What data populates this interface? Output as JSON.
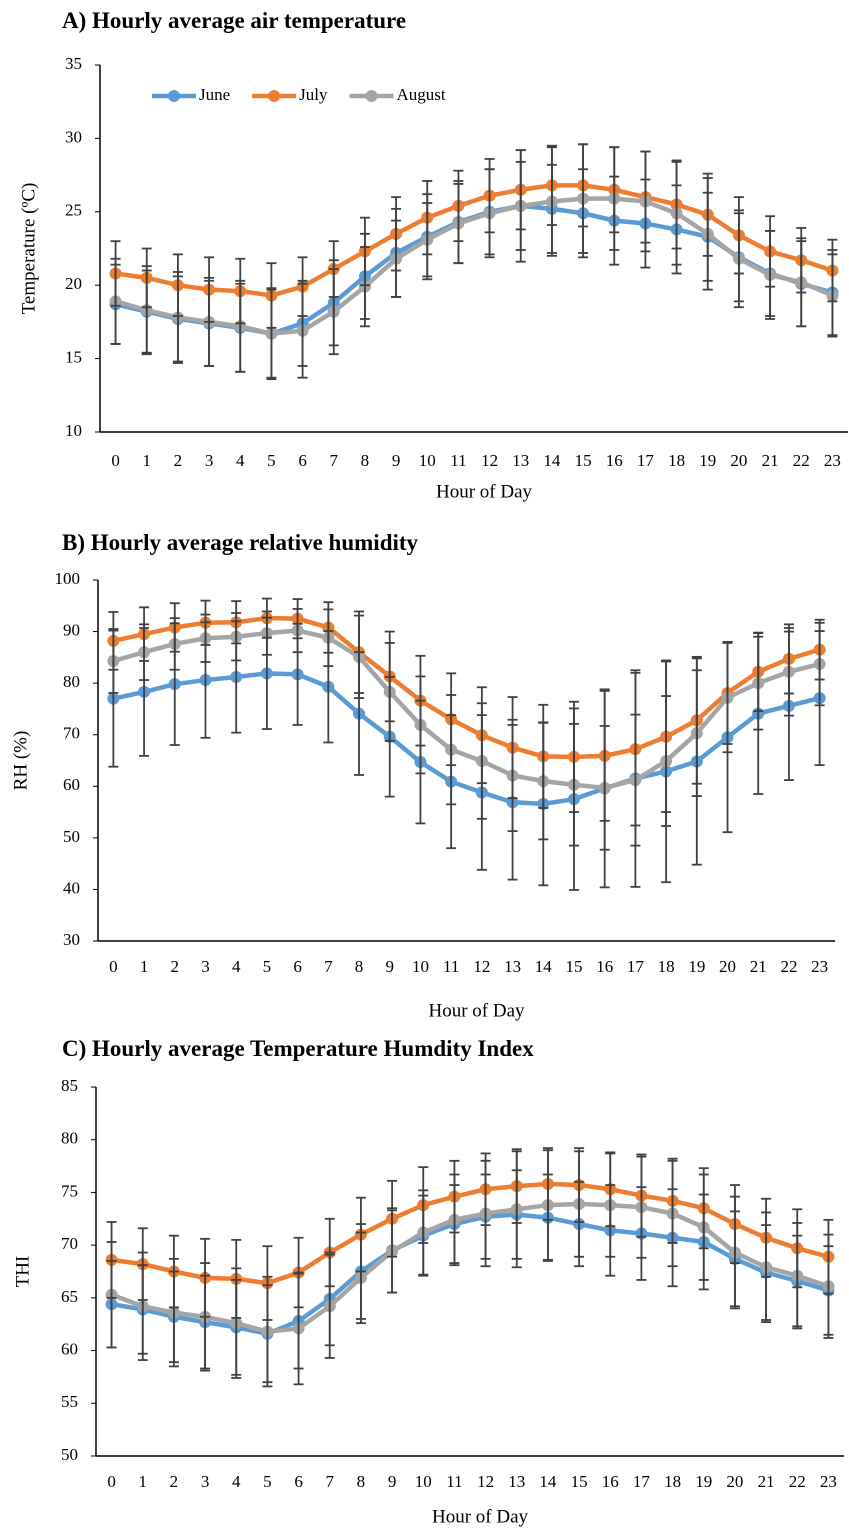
{
  "chart_data": [
    {
      "type": "line",
      "title": "A) Hourly average air temperature",
      "x_label": "Hour of Day",
      "y_label": "Temperature (ºC)",
      "categories": [
        "0",
        "1",
        "2",
        "3",
        "4",
        "5",
        "6",
        "7",
        "8",
        "9",
        "10",
        "11",
        "12",
        "13",
        "14",
        "15",
        "16",
        "17",
        "18",
        "19",
        "20",
        "21",
        "22",
        "23"
      ],
      "ylim": [
        10,
        35
      ],
      "yticks": [
        10,
        15,
        20,
        25,
        30,
        35
      ],
      "legend": "upper left",
      "series": [
        {
          "name": "June",
          "color": "#5b9bd5",
          "values": [
            18.7,
            18.2,
            17.7,
            17.4,
            17.1,
            16.7,
            17.4,
            18.8,
            20.6,
            22.2,
            23.3,
            24.3,
            25.0,
            25.4,
            25.2,
            24.9,
            24.4,
            24.2,
            23.8,
            23.3,
            21.9,
            20.8,
            20.1,
            19.5
          ],
          "errors": [
            2.7,
            2.8,
            2.9,
            2.9,
            3.0,
            3.0,
            2.9,
            2.9,
            2.9,
            3.0,
            2.9,
            2.8,
            2.9,
            3.0,
            3.0,
            3.0,
            3.0,
            3.0,
            3.0,
            3.0,
            3.0,
            2.9,
            2.9,
            2.9
          ]
        },
        {
          "name": "July",
          "color": "#ed7d31",
          "values": [
            20.8,
            20.5,
            20.0,
            19.7,
            19.6,
            19.3,
            19.9,
            21.1,
            22.3,
            23.5,
            24.6,
            25.4,
            26.1,
            26.5,
            26.8,
            26.8,
            26.5,
            26.0,
            25.5,
            24.8,
            23.4,
            22.3,
            21.7,
            21.0
          ],
          "errors": [
            2.2,
            2.0,
            2.1,
            2.2,
            2.2,
            2.2,
            2.0,
            1.9,
            2.3,
            2.5,
            2.5,
            2.4,
            2.5,
            2.7,
            2.7,
            2.8,
            2.9,
            3.1,
            3.0,
            2.8,
            2.6,
            2.4,
            2.2,
            2.1
          ]
        },
        {
          "name": "August",
          "color": "#a5a5a5",
          "values": [
            18.9,
            18.3,
            17.8,
            17.5,
            17.2,
            16.7,
            16.9,
            18.2,
            19.9,
            21.8,
            23.1,
            24.2,
            24.9,
            25.4,
            25.7,
            25.9,
            25.9,
            25.7,
            24.9,
            23.5,
            21.8,
            20.7,
            20.2,
            19.3
          ],
          "errors": [
            2.9,
            3.0,
            3.1,
            3.0,
            3.1,
            3.1,
            3.2,
            2.9,
            2.7,
            2.6,
            2.5,
            2.7,
            3.0,
            3.8,
            3.7,
            3.7,
            3.5,
            3.4,
            3.5,
            3.8,
            3.3,
            3.0,
            3.0,
            2.8
          ]
        }
      ]
    },
    {
      "type": "line",
      "title": "B) Hourly average relative humidity",
      "x_label": "Hour of Day",
      "y_label": "RH (%)",
      "categories": [
        "0",
        "1",
        "2",
        "3",
        "4",
        "5",
        "6",
        "7",
        "8",
        "9",
        "10",
        "11",
        "12",
        "13",
        "14",
        "15",
        "16",
        "17",
        "18",
        "19",
        "20",
        "21",
        "22",
        "23"
      ],
      "ylim": [
        30,
        100
      ],
      "yticks": [
        30,
        40,
        50,
        60,
        70,
        80,
        90,
        100
      ],
      "series": [
        {
          "color": "#5b9bd5",
          "values": [
            77.0,
            78.3,
            79.8,
            80.6,
            81.2,
            81.9,
            81.7,
            79.3,
            74.1,
            69.6,
            64.7,
            60.9,
            58.8,
            56.9,
            56.6,
            57.5,
            59.6,
            61.5,
            62.9,
            64.8,
            69.5,
            74.1,
            75.6,
            77.1
          ],
          "errors": [
            13.2,
            12.4,
            11.8,
            11.2,
            10.8,
            10.8,
            9.8,
            10.8,
            11.9,
            11.6,
            11.9,
            12.9,
            15.0,
            15.0,
            15.8,
            17.6,
            19.2,
            21.0,
            21.5,
            20.0,
            18.4,
            15.6,
            14.4,
            13.0
          ]
        },
        {
          "color": "#ed7d31",
          "values": [
            88.2,
            89.5,
            90.8,
            91.7,
            91.8,
            92.6,
            92.5,
            90.8,
            86.0,
            81.3,
            76.6,
            73.0,
            69.9,
            67.5,
            65.8,
            65.7,
            65.9,
            67.2,
            69.6,
            72.8,
            78.1,
            82.2,
            84.7,
            86.5
          ],
          "errors": [
            5.6,
            5.2,
            4.7,
            4.3,
            4.1,
            3.8,
            3.8,
            4.9,
            7.9,
            8.7,
            8.7,
            8.9,
            9.3,
            9.8,
            10.0,
            10.7,
            12.6,
            14.8,
            14.6,
            12.3,
            9.9,
            7.6,
            6.7,
            5.8
          ]
        },
        {
          "color": "#a5a5a5",
          "values": [
            84.3,
            86.0,
            87.6,
            88.7,
            89.0,
            89.7,
            90.2,
            88.8,
            85.1,
            78.3,
            71.9,
            67.1,
            64.9,
            62.1,
            61.0,
            60.3,
            59.7,
            61.2,
            64.9,
            70.3,
            77.2,
            80.0,
            82.2,
            83.7
          ],
          "errors": [
            6.2,
            5.4,
            5.0,
            4.6,
            4.6,
            4.2,
            4.2,
            5.5,
            8.0,
            9.5,
            9.4,
            10.6,
            11.2,
            10.8,
            11.3,
            11.8,
            12.0,
            12.7,
            12.6,
            12.2,
            10.6,
            9.0,
            8.5,
            8.0
          ]
        }
      ]
    },
    {
      "type": "line",
      "title": "C) Hourly average Temperature Humdity Index",
      "x_label": "Hour of Day",
      "y_label": "THI",
      "categories": [
        "0",
        "1",
        "2",
        "3",
        "4",
        "5",
        "6",
        "7",
        "8",
        "9",
        "10",
        "11",
        "12",
        "13",
        "14",
        "15",
        "16",
        "17",
        "18",
        "19",
        "20",
        "21",
        "22",
        "23"
      ],
      "ylim": [
        50,
        85
      ],
      "yticks": [
        50,
        55,
        60,
        65,
        70,
        75,
        80,
        85
      ],
      "series": [
        {
          "color": "#5b9bd5",
          "values": [
            64.4,
            63.9,
            63.2,
            62.7,
            62.2,
            61.6,
            62.8,
            64.9,
            67.5,
            69.5,
            70.9,
            72.0,
            72.7,
            72.9,
            72.6,
            72.0,
            71.4,
            71.1,
            70.7,
            70.3,
            68.7,
            67.4,
            66.6,
            65.7
          ],
          "errors": [
            4.1,
            4.2,
            4.3,
            4.4,
            4.5,
            4.6,
            4.5,
            4.4,
            4.5,
            4.0,
            3.8,
            3.7,
            4.0,
            4.2,
            4.1,
            4.0,
            4.3,
            4.4,
            4.6,
            4.5,
            4.5,
            4.5,
            4.3,
            4.2
          ]
        },
        {
          "color": "#ed7d31",
          "values": [
            68.6,
            68.2,
            67.5,
            66.9,
            66.8,
            66.4,
            67.4,
            69.3,
            71.0,
            72.5,
            73.8,
            74.6,
            75.3,
            75.6,
            75.8,
            75.7,
            75.3,
            74.7,
            74.2,
            73.5,
            72.0,
            70.7,
            69.7,
            68.9
          ],
          "errors": [
            3.6,
            3.4,
            3.4,
            3.7,
            3.7,
            3.5,
            3.3,
            3.2,
            3.5,
            3.6,
            3.6,
            3.4,
            3.4,
            3.5,
            3.4,
            3.5,
            3.5,
            3.9,
            4.0,
            3.8,
            3.7,
            3.7,
            3.7,
            3.5
          ]
        },
        {
          "color": "#a5a5a5",
          "values": [
            65.3,
            64.2,
            63.6,
            63.2,
            62.6,
            61.8,
            62.1,
            64.2,
            66.9,
            69.4,
            71.2,
            72.4,
            73.0,
            73.4,
            73.8,
            73.9,
            73.8,
            73.6,
            73.0,
            71.7,
            69.3,
            67.9,
            67.1,
            66.1
          ],
          "errors": [
            5.0,
            5.1,
            5.1,
            5.1,
            5.2,
            5.2,
            5.3,
            4.9,
            4.3,
            3.9,
            4.0,
            4.3,
            5.0,
            5.5,
            5.2,
            5.0,
            4.9,
            4.8,
            5.0,
            5.0,
            5.3,
            5.2,
            5.0,
            4.9
          ]
        }
      ]
    }
  ]
}
